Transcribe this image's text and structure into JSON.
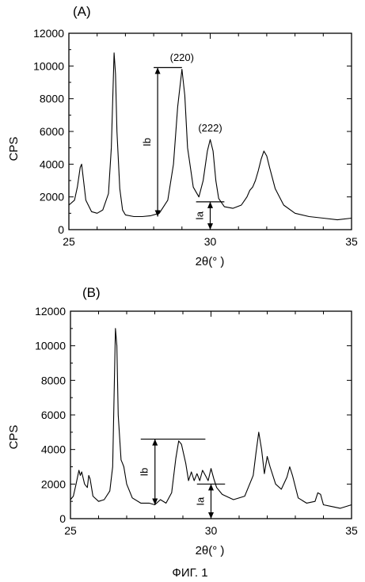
{
  "caption": "ФИГ. 1",
  "chart_data": [
    {
      "type": "line",
      "panel_label": "(A)",
      "xlabel": "2θ(°  )",
      "ylabel": "CPS",
      "xlim": [
        25,
        35
      ],
      "ylim": [
        0,
        12000
      ],
      "xticks": [
        25,
        30,
        35
      ],
      "yticks": [
        0,
        2000,
        4000,
        6000,
        8000,
        10000,
        12000
      ],
      "grid": false,
      "series": [
        {
          "x": [
            25.0,
            25.2,
            25.3,
            25.4,
            25.45,
            25.5,
            25.6,
            25.8,
            26.0,
            26.2,
            26.4,
            26.5,
            26.6,
            26.65,
            26.7,
            26.8,
            26.9,
            27.0,
            27.3,
            27.6,
            27.9,
            28.2,
            28.5,
            28.7,
            28.85,
            29.0,
            29.1,
            29.2,
            29.4,
            29.6,
            29.75,
            29.9,
            30.0,
            30.1,
            30.2,
            30.3,
            30.5,
            30.8,
            31.1,
            31.3,
            31.4,
            31.5,
            31.6,
            31.7,
            31.8,
            31.9,
            32.0,
            32.1,
            32.3,
            32.6,
            33.0,
            33.5,
            34.0,
            34.5,
            35.0
          ],
          "y": [
            1500,
            1800,
            2600,
            3800,
            4000,
            3300,
            1800,
            1100,
            1000,
            1200,
            2200,
            5000,
            10800,
            9500,
            6000,
            2500,
            1200,
            900,
            800,
            800,
            850,
            1000,
            1800,
            4000,
            7500,
            9800,
            8200,
            5000,
            2600,
            2000,
            3000,
            4800,
            5500,
            4800,
            3000,
            1900,
            1400,
            1300,
            1500,
            2000,
            2400,
            2600,
            3000,
            3600,
            4300,
            4800,
            4500,
            3800,
            2500,
            1500,
            1000,
            800,
            700,
            600,
            700
          ]
        }
      ],
      "annotations": [
        {
          "text": "(220)",
          "x": 29.0,
          "y": 10300
        },
        {
          "text": "(222)",
          "x": 30.0,
          "y": 6000
        },
        {
          "text": "Ib",
          "x_range": [
            28.0,
            29.0
          ],
          "y_low": 800,
          "y_high": 9900
        },
        {
          "text": "Ia",
          "x_range": [
            29.5,
            30.5
          ],
          "y_low": 0,
          "y_high": 1700
        }
      ]
    },
    {
      "type": "line",
      "panel_label": "(B)",
      "xlabel": "2θ(°  )",
      "ylabel": "CPS",
      "xlim": [
        25,
        35
      ],
      "ylim": [
        0,
        12000
      ],
      "xticks": [
        25,
        30,
        35
      ],
      "yticks": [
        0,
        2000,
        4000,
        6000,
        8000,
        10000,
        12000
      ],
      "grid": false,
      "series": [
        {
          "x": [
            25.0,
            25.1,
            25.2,
            25.3,
            25.35,
            25.4,
            25.5,
            25.6,
            25.65,
            25.7,
            25.8,
            26.0,
            26.2,
            26.4,
            26.5,
            26.6,
            26.65,
            26.7,
            26.8,
            26.85,
            26.9,
            27.0,
            27.2,
            27.5,
            27.8,
            28.0,
            28.2,
            28.4,
            28.6,
            28.75,
            28.85,
            28.95,
            29.1,
            29.2,
            29.3,
            29.4,
            29.5,
            29.6,
            29.7,
            29.8,
            29.9,
            30.0,
            30.1,
            30.2,
            30.4,
            30.8,
            31.2,
            31.5,
            31.6,
            31.7,
            31.8,
            31.9,
            32.0,
            32.1,
            32.3,
            32.5,
            32.7,
            32.8,
            32.9,
            33.1,
            33.4,
            33.7,
            33.8,
            33.9,
            34.0,
            34.3,
            34.6,
            35.0
          ],
          "y": [
            1100,
            1300,
            2000,
            2800,
            2500,
            2700,
            2000,
            1800,
            2500,
            2300,
            1300,
            1000,
            1100,
            1600,
            3000,
            11000,
            10000,
            6000,
            3400,
            3200,
            3000,
            2000,
            1200,
            900,
            900,
            800,
            1100,
            900,
            1500,
            3500,
            4500,
            4300,
            3200,
            2200,
            2700,
            2200,
            2600,
            2200,
            2800,
            2500,
            2200,
            2900,
            2300,
            1800,
            1400,
            1100,
            1300,
            2500,
            3800,
            5000,
            4000,
            2600,
            3600,
            3000,
            2000,
            1700,
            2400,
            3000,
            2500,
            1200,
            900,
            1000,
            1500,
            1400,
            800,
            700,
            600,
            800
          ]
        }
      ],
      "annotations": [
        {
          "text": "Ib",
          "x_range": [
            27.5,
            29.8
          ],
          "y_low": 800,
          "y_high": 4600
        },
        {
          "text": "Ia",
          "x_range": [
            29.5,
            30.5
          ],
          "y_low": 0,
          "y_high": 2000
        }
      ]
    }
  ]
}
